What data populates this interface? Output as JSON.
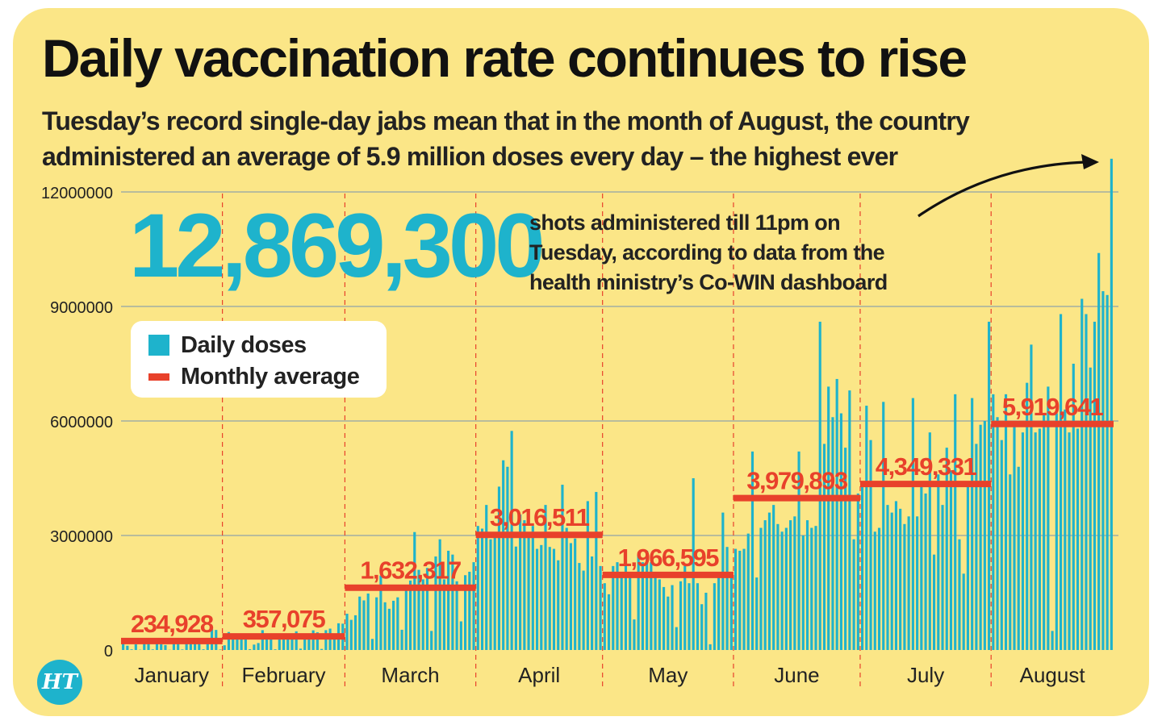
{
  "headline": "Daily vaccination rate continues to rise",
  "subhead_line1": "Tuesday’s record single-day jabs mean that in the month of August, the country",
  "subhead_line2": "administered an average of 5.9 million doses every day – the highest ever",
  "callout": {
    "number": "12,869,300",
    "line1": "shots administered till 11pm on",
    "line2": "Tuesday, according to data from the",
    "line3": "health ministry’s Co-WIN dashboard"
  },
  "legend": {
    "daily_label": "Daily doses",
    "average_label": "Monthly average"
  },
  "logo_text": "HT",
  "colors": {
    "background": "#fbe687",
    "bars": "#1eb3cc",
    "average": "#e8412b",
    "gridline": "#8fa3a8",
    "month_divider": "#e8412b",
    "logo": "#1eb3cc"
  },
  "chart_data": {
    "type": "bar",
    "title": "Daily vaccination rate continues to rise",
    "xlabel": "",
    "ylabel": "",
    "ylim": [
      0,
      13000000
    ],
    "yticks": [
      0,
      3000000,
      6000000,
      9000000,
      12000000
    ],
    "ytick_labels": [
      "0",
      "3000000",
      "6000000",
      "9000000",
      "12000000"
    ],
    "grid": true,
    "legend_position": "left",
    "series": [
      {
        "name": "Daily doses",
        "kind": "bar",
        "months": [
          {
            "month": "January",
            "values": [
              191181,
              112007,
              17072,
              148266,
              7070,
              224301,
              198286,
              15720,
              201000,
              153000,
              130000,
              5000,
              210000,
              188000,
              14000,
              162000,
              251000,
              235000,
              218000,
              19000,
              160000,
              540000,
              525000,
              12000
            ]
          },
          {
            "month": "February",
            "values": [
              124000,
              471000,
              380000,
              342000,
              327000,
              408000,
              21000,
              142000,
              182000,
              520000,
              365000,
              355000,
              18000,
              327000,
              370000,
              410000,
              433000,
              490000,
              35000,
              311000,
              380000,
              515000,
              463000,
              28000,
              520000,
              560000,
              310000,
              700000,
              690000
            ]
          },
          {
            "month": "March",
            "values": [
              950000,
              790000,
              910000,
              1400000,
              1300000,
              1480000,
              290000,
              1380000,
              1950000,
              1250000,
              1080000,
              1290000,
              1380000,
              530000,
              1650000,
              1820000,
              3090000,
              2100000,
              1850000,
              2150000,
              500000,
              2450000,
              2900000,
              1850000,
              2600000,
              2500000,
              1800000,
              750000,
              1960000,
              2050000,
              2300000
            ]
          },
          {
            "month": "April",
            "values": [
              3250000,
              3180000,
              3800000,
              2900000,
              3030000,
              4280000,
              4970000,
              4800000,
              5740000,
              2710000,
              3550000,
              3400000,
              2950000,
              3250000,
              2650000,
              2750000,
              3800000,
              2700000,
              2650000,
              2350000,
              4330000,
              3200000,
              2800000,
              2920000,
              2280000,
              2080000,
              3900000,
              2450000,
              4140000,
              2200000
            ]
          },
          {
            "month": "May",
            "values": [
              1750000,
              1460000,
              2200000,
              2300000,
              2000000,
              2350000,
              1950000,
              800000,
              2500000,
              2300000,
              2600000,
              2300000,
              1930000,
              1850000,
              1650000,
              1400000,
              1700000,
              600000,
              1800000,
              2200000,
              1750000,
              4500000,
              1750000,
              1200000,
              1500000,
              150000,
              1750000,
              1900000,
              3600000,
              2700000,
              1920000
            ]
          },
          {
            "month": "June",
            "values": [
              2650000,
              2600000,
              2650000,
              3050000,
              5200000,
              1900000,
              3200000,
              3400000,
              3600000,
              3800000,
              3300000,
              3100000,
              3200000,
              3400000,
              3500000,
              5200000,
              3000000,
              3400000,
              3200000,
              3250000,
              8600000,
              5400000,
              6900000,
              6100000,
              7100000,
              6200000,
              5300000,
              6800000,
              2900000,
              4100000
            ]
          },
          {
            "month": "July",
            "values": [
              4400000,
              6400000,
              5500000,
              3100000,
              3200000,
              6500000,
              3800000,
              3600000,
              3900000,
              3700000,
              3300000,
              3500000,
              6600000,
              3500000,
              4400000,
              4100000,
              5700000,
              2500000,
              4600000,
              3800000,
              5300000,
              4700000,
              6700000,
              2900000,
              2000000,
              4400000,
              6600000,
              5400000,
              5900000,
              6000000,
              8600000
            ]
          },
          {
            "month": "August",
            "values": [
              6700000,
              6100000,
              5500000,
              6700000,
              4600000,
              6000000,
              4800000,
              5700000,
              7000000,
              8000000,
              5700000,
              5800000,
              6200000,
              6900000,
              500000,
              6200000,
              8800000,
              6300000,
              5700000,
              7500000,
              5800000,
              9200000,
              8800000,
              7400000,
              8600000,
              10400000,
              9400000,
              9300000,
              12869300
            ]
          }
        ]
      },
      {
        "name": "Monthly average",
        "kind": "line",
        "categories": [
          "January",
          "February",
          "March",
          "April",
          "May",
          "June",
          "July",
          "August"
        ],
        "values": [
          234928,
          357075,
          1632317,
          3016511,
          1966595,
          3979893,
          4349331,
          5919641
        ],
        "labels": [
          "234,928",
          "357,075",
          "1,632,317",
          "3,016,511",
          "1,966,595",
          "3,979,893",
          "4,349,331",
          "5,919,641"
        ]
      }
    ],
    "annotations": [
      {
        "target": "August, last day",
        "value": 12869300,
        "text": "12,869,300"
      }
    ]
  }
}
